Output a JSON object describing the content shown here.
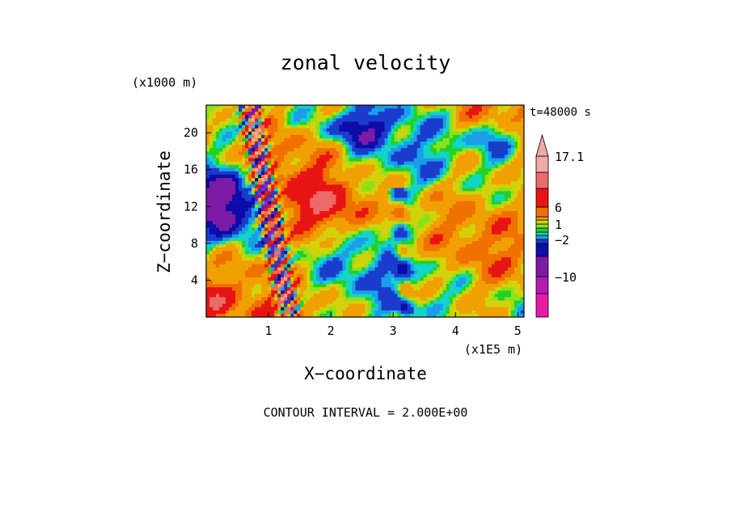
{
  "chart_data": {
    "type": "heatmap",
    "title": "zonal velocity",
    "xlabel": "X−coordinate",
    "ylabel": "Z−coordinate",
    "x_unit": "(x1E5 m)",
    "y_unit": "(x1000 m)",
    "time_label": "t=48000 s",
    "footer": "CONTOUR INTERVAL = 2.000E+00",
    "xlim": [
      0,
      5.1
    ],
    "ylim": [
      0,
      23
    ],
    "x_ticks": [
      1,
      2,
      3,
      4,
      5
    ],
    "y_ticks": [
      4,
      8,
      12,
      16,
      20
    ],
    "colorbar": {
      "levels": [
        -15,
        -12,
        -10,
        -6,
        -4,
        -2,
        -1,
        0,
        0.5,
        1,
        2,
        4,
        6,
        10,
        14,
        17.1
      ],
      "colors": [
        "#e81aa8",
        "#b51ab5",
        "#7d1aa6",
        "#0d0da8",
        "#1a3ccc",
        "#1a9ee8",
        "#12d4c8",
        "#22d222",
        "#8ce21a",
        "#d2d20a",
        "#f0a000",
        "#f07000",
        "#e81414",
        "#ec6a6a",
        "#f0a8a8"
      ],
      "tick_labels": [
        "17.1",
        "6",
        "1",
        "−2",
        "−10"
      ],
      "tick_values": [
        17.1,
        6,
        1,
        -2,
        -10
      ]
    }
  }
}
